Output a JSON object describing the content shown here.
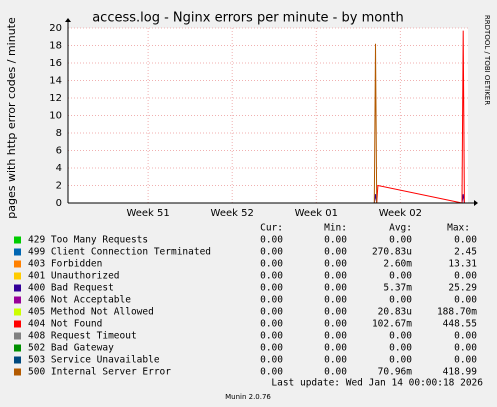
{
  "chart_data": {
    "type": "line",
    "title": "access.log - Nginx errors per minute - by month",
    "y_label": "pages with http error codes / minute",
    "side_label": "RRDTOOL / TOBI OETIKER",
    "legend_headers": [
      "Cur:",
      "Min:",
      "Avg:",
      "Max:"
    ],
    "last_update": "Last update: Wed Jan 14 00:00:18 2026",
    "footer": "Munin 2.0.76",
    "x": [
      0,
      25.5,
      25.6,
      25.7,
      25.8,
      32.8,
      32.9,
      33.0,
      33.3
    ],
    "xlim": [
      0,
      33.3
    ],
    "xticks": [
      {
        "value": 6.67,
        "label": "Week 51"
      },
      {
        "value": 13.67,
        "label": "Week 52"
      },
      {
        "value": 20.67,
        "label": "Week 01"
      },
      {
        "value": 27.67,
        "label": "Week 02"
      }
    ],
    "ylim": [
      0,
      20
    ],
    "yticks": [
      0,
      2,
      4,
      6,
      8,
      10,
      12,
      14,
      16,
      18,
      20
    ],
    "grid": true,
    "series": [
      {
        "name": "429 Too Many Requests",
        "color": "#00cc00",
        "values": [
          0,
          0,
          0,
          0,
          0,
          0,
          0,
          0,
          0
        ],
        "cur": "0.00",
        "min": "0.00",
        "avg": "0.00",
        "max": "0.00"
      },
      {
        "name": "499 Client Connection Terminated",
        "color": "#0066b3",
        "values": [
          0,
          0,
          0,
          0,
          0,
          0,
          0,
          0,
          0
        ],
        "cur": "0.00",
        "min": "0.00",
        "avg": "270.83u",
        "max": "2.45"
      },
      {
        "name": "403 Forbidden",
        "color": "#ff8000",
        "values": [
          0,
          0,
          0,
          0,
          0,
          0,
          0,
          0,
          0
        ],
        "cur": "0.00",
        "min": "0.00",
        "avg": "2.60m",
        "max": "13.31"
      },
      {
        "name": "401 Unauthorized",
        "color": "#ffcc00",
        "values": [
          0,
          0,
          0,
          0,
          0,
          0,
          0,
          0,
          0
        ],
        "cur": "0.00",
        "min": "0.00",
        "avg": "0.00",
        "max": "0.00"
      },
      {
        "name": "400 Bad Request",
        "color": "#330099",
        "values": [
          0,
          0,
          1,
          0,
          0,
          0,
          1,
          0,
          0
        ],
        "cur": "0.00",
        "min": "0.00",
        "avg": "5.37m",
        "max": "25.29"
      },
      {
        "name": "406 Not Acceptable",
        "color": "#990099",
        "values": [
          0,
          0,
          0,
          0,
          0,
          0,
          0,
          0,
          0
        ],
        "cur": "0.00",
        "min": "0.00",
        "avg": "0.00",
        "max": "0.00"
      },
      {
        "name": "405 Method Not Allowed",
        "color": "#ccff00",
        "values": [
          0,
          0,
          0,
          0,
          0,
          0,
          0,
          0,
          0
        ],
        "cur": "0.00",
        "min": "0.00",
        "avg": "20.83u",
        "max": "188.70m"
      },
      {
        "name": "404 Not Found",
        "color": "#ff0000",
        "values": [
          0,
          0,
          0,
          0,
          2,
          0,
          19.7,
          0,
          0
        ],
        "cur": "0.00",
        "min": "0.00",
        "avg": "102.67m",
        "max": "448.55"
      },
      {
        "name": "408 Request Timeout",
        "color": "#808080",
        "values": [
          0,
          0,
          0,
          0,
          0,
          0,
          0,
          0,
          0
        ],
        "cur": "0.00",
        "min": "0.00",
        "avg": "0.00",
        "max": "0.00"
      },
      {
        "name": "502 Bad Gateway",
        "color": "#008f00",
        "values": [
          0,
          0,
          0,
          0,
          0,
          0,
          0,
          0,
          0
        ],
        "cur": "0.00",
        "min": "0.00",
        "avg": "0.00",
        "max": "0.00"
      },
      {
        "name": "503 Service Unavailable",
        "color": "#00487d",
        "values": [
          0,
          0,
          0,
          0,
          0,
          0,
          0,
          0,
          0
        ],
        "cur": "0.00",
        "min": "0.00",
        "avg": "0.00",
        "max": "0.00"
      },
      {
        "name": "500 Internal Server Error",
        "color": "#b35a00",
        "values": [
          0,
          0,
          18.2,
          0,
          0,
          0,
          0,
          0,
          0
        ],
        "cur": "0.00",
        "min": "0.00",
        "avg": "70.96m",
        "max": "418.99"
      }
    ]
  }
}
